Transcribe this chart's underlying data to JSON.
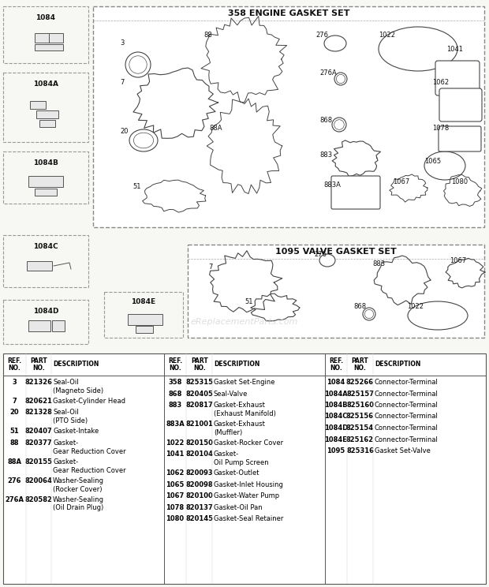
{
  "bg_color": "#f7f7f4",
  "watermark": "eReplacementParts.com",
  "engine_gasket_title": "358 ENGINE GASKET SET",
  "valve_gasket_title": "1095 VALVE GASKET SET",
  "col1_rows": [
    [
      "3",
      "821326",
      "Seal-Oil",
      "(Magneto Side)"
    ],
    [
      "7",
      "820621",
      "Gasket-Cylinder Head",
      ""
    ],
    [
      "20",
      "821328",
      "Seal-Oil",
      "(PTO Side)"
    ],
    [
      "51",
      "820407",
      "Gasket-Intake",
      ""
    ],
    [
      "88",
      "820377",
      "Gasket-",
      "Gear Reduction Cover"
    ],
    [
      "88A",
      "820155",
      "Gasket-",
      "Gear Reduction Cover"
    ],
    [
      "276",
      "820064",
      "Washer-Sealing",
      "(Rocker Cover)"
    ],
    [
      "276A",
      "820582",
      "Washer-Sealing",
      "(Oil Drain Plug)"
    ]
  ],
  "col2_rows": [
    [
      "358",
      "825315",
      "Gasket Set-Engine",
      ""
    ],
    [
      "868",
      "820405",
      "Seal-Valve",
      ""
    ],
    [
      "883",
      "820817",
      "Gasket-Exhaust",
      "(Exhaust Manifold)"
    ],
    [
      "883A",
      "821001",
      "Gasket-Exhaust",
      "(Muffler)"
    ],
    [
      "1022",
      "820150",
      "Gasket-Rocker Cover",
      ""
    ],
    [
      "1041",
      "820104",
      "Gasket-",
      "Oil Pump Screen"
    ],
    [
      "1062",
      "820093",
      "Gasket-Outlet",
      ""
    ],
    [
      "1065",
      "820098",
      "Gasket-Inlet Housing",
      ""
    ],
    [
      "1067",
      "820100",
      "Gasket-Water Pump",
      ""
    ],
    [
      "1078",
      "820137",
      "Gasket-Oil Pan",
      ""
    ],
    [
      "1080",
      "820145",
      "Gasket-Seal Retainer",
      ""
    ]
  ],
  "col3_rows": [
    [
      "1084",
      "825266",
      "Connector-Terminal",
      ""
    ],
    [
      "1084A",
      "825157",
      "Connector-Terminal",
      ""
    ],
    [
      "1084B",
      "825160",
      "Connector-Terminal",
      ""
    ],
    [
      "1084C",
      "825156",
      "Connector-Terminal",
      ""
    ],
    [
      "1084D",
      "825154",
      "Connector-Terminal",
      ""
    ],
    [
      "1084E",
      "825162",
      "Connector-Terminal",
      ""
    ],
    [
      "1095",
      "825316",
      "Gasket Set-Valve",
      ""
    ]
  ]
}
